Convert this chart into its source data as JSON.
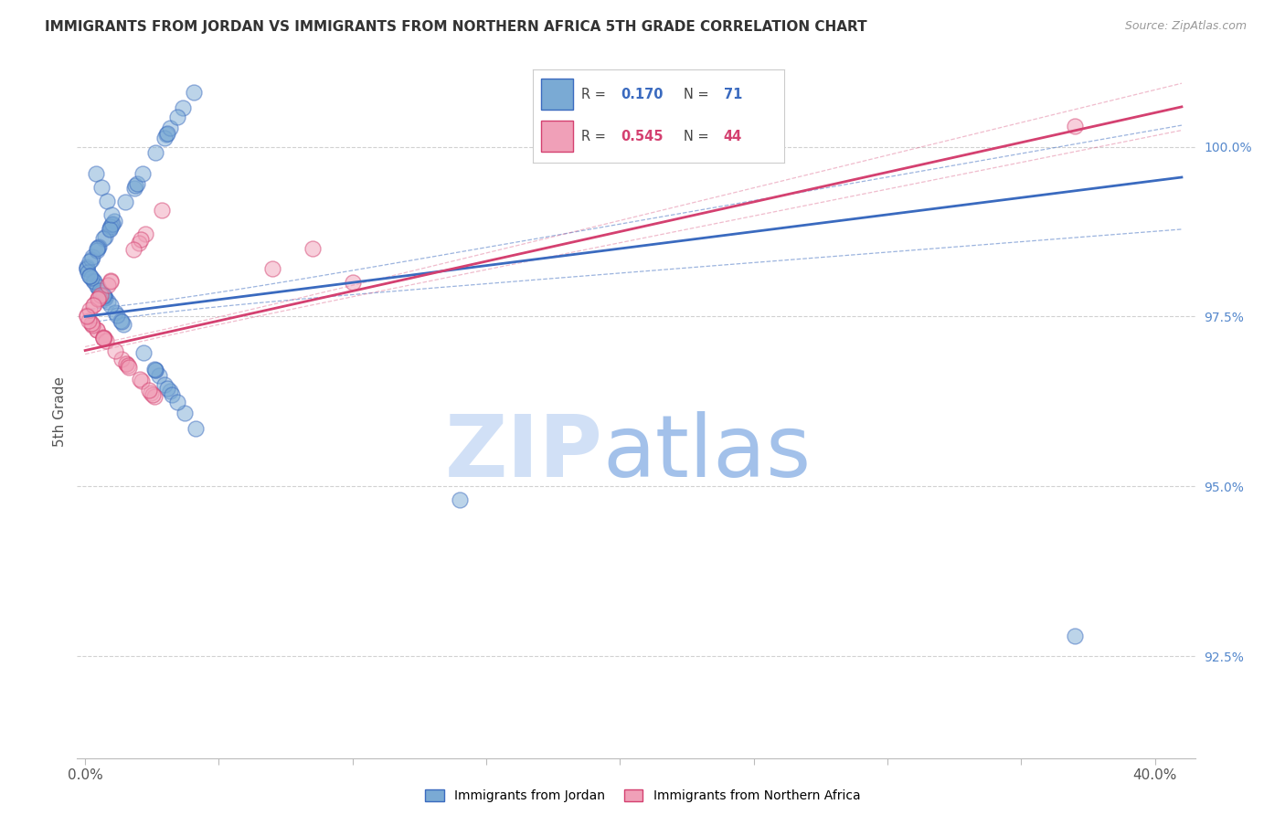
{
  "title": "IMMIGRANTS FROM JORDAN VS IMMIGRANTS FROM NORTHERN AFRICA 5TH GRADE CORRELATION CHART",
  "source": "Source: ZipAtlas.com",
  "ylabel": "5th Grade",
  "y_min": 91.0,
  "y_max": 101.2,
  "x_min": -0.3,
  "x_max": 41.5,
  "legend_R1": "0.170",
  "legend_N1": "71",
  "legend_R2": "0.545",
  "legend_N2": "44",
  "jordan_color": "#7aaad4",
  "northern_africa_color": "#f0a0b8",
  "jordan_line_color": "#3a6abf",
  "northern_africa_line_color": "#d44070",
  "jordan_ci_color": "#aac4e8",
  "northern_africa_ci_color": "#f0b8cc"
}
